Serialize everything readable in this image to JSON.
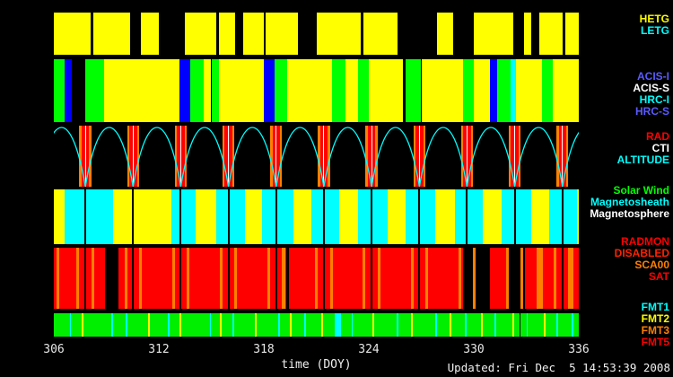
{
  "footer": {
    "updated": "Updated: Fri Dec  5 14:53:39 2008"
  },
  "labels": {
    "groups": [
      {
        "items": [
          {
            "text": "HETG",
            "color": "#ffff00"
          },
          {
            "text": "LETG",
            "color": "#00ffff"
          }
        ]
      },
      {
        "items": [
          {
            "text": "ACIS-I",
            "color": "#5a5aff"
          },
          {
            "text": "ACIS-S",
            "color": "#ffffff"
          },
          {
            "text": "HRC-I",
            "color": "#00ffff"
          },
          {
            "text": "HRC-S",
            "color": "#5a5aff"
          }
        ]
      },
      {
        "items": [
          {
            "text": "RAD",
            "color": "#ff0000"
          },
          {
            "text": "CTI",
            "color": "#ffffff"
          },
          {
            "text": "ALTITUDE",
            "color": "#00ffff"
          }
        ]
      },
      {
        "items": [
          {
            "text": "Solar Wind",
            "color": "#00ff00"
          },
          {
            "text": "Magnetosheath",
            "color": "#00ffff"
          },
          {
            "text": "Magnetosphere",
            "color": "#ffffff"
          }
        ]
      },
      {
        "items": [
          {
            "text": "RADMON",
            "color": "#ff0000"
          },
          {
            "text": "DISABLED",
            "color": "#ff2200"
          },
          {
            "text": "SCA00",
            "color": "#ff8000"
          },
          {
            "text": "SAT",
            "color": "#ff0000"
          }
        ]
      },
      {
        "items": [
          {
            "text": "FMT1",
            "color": "#00ffff"
          },
          {
            "text": "FMT2",
            "color": "#ffff00"
          },
          {
            "text": "FMT3",
            "color": "#ff8000"
          },
          {
            "text": "FMT5",
            "color": "#ff0000"
          }
        ]
      }
    ]
  },
  "chart_data": {
    "type": "timeline",
    "xlabel": "time (DOY)",
    "xlim": [
      306,
      336
    ],
    "xticks": [
      306,
      312,
      318,
      324,
      330,
      336
    ],
    "orbital_period_days": 2.727,
    "perigee_times": [
      307.8,
      310.53,
      313.25,
      315.98,
      318.71,
      321.43,
      324.16,
      326.89,
      329.61,
      332.34,
      335.07
    ],
    "bands": [
      {
        "id": "grating",
        "legend": {
          "HETG": "#ffff00",
          "LETG": "#00ffff"
        },
        "background": "#000000",
        "segments": [
          {
            "start": 306.0,
            "end": 308.1,
            "color": "#ffff00"
          },
          {
            "start": 308.25,
            "end": 310.35,
            "color": "#ffff00"
          },
          {
            "start": 310.95,
            "end": 312.0,
            "color": "#ffff00"
          },
          {
            "start": 313.5,
            "end": 315.3,
            "color": "#ffff00"
          },
          {
            "start": 315.45,
            "end": 316.35,
            "color": "#ffff00"
          },
          {
            "start": 316.8,
            "end": 318.0,
            "color": "#ffff00"
          },
          {
            "start": 318.12,
            "end": 319.95,
            "color": "#ffff00"
          },
          {
            "start": 321.0,
            "end": 323.55,
            "color": "#ffff00"
          },
          {
            "start": 323.7,
            "end": 325.65,
            "color": "#ffff00"
          },
          {
            "start": 327.9,
            "end": 328.8,
            "color": "#ffff00"
          },
          {
            "start": 330.0,
            "end": 332.25,
            "color": "#ffff00"
          },
          {
            "start": 332.85,
            "end": 333.3,
            "color": "#ffff00"
          },
          {
            "start": 333.75,
            "end": 335.1,
            "color": "#ffff00"
          },
          {
            "start": 335.25,
            "end": 336.0,
            "color": "#ffff00"
          }
        ]
      },
      {
        "id": "instruments",
        "legend": {
          "ACIS-I": "#0000ff",
          "ACIS-S": "#ffff00",
          "HRC-I": "#00ff00",
          "HRC-S": "#00ffff"
        },
        "background": "#000000",
        "segments": [
          {
            "start": 306.0,
            "end": 306.6,
            "color": "#00ff00"
          },
          {
            "start": 306.6,
            "end": 307.05,
            "color": "#0000ff"
          },
          {
            "start": 307.8,
            "end": 308.85,
            "color": "#00ff00"
          },
          {
            "start": 308.85,
            "end": 313.2,
            "color": "#ffff00"
          },
          {
            "start": 313.2,
            "end": 313.8,
            "color": "#0000ff"
          },
          {
            "start": 313.8,
            "end": 314.55,
            "color": "#00ff00"
          },
          {
            "start": 314.55,
            "end": 315.0,
            "color": "#ffff00"
          },
          {
            "start": 315.0,
            "end": 315.45,
            "color": "#00ff00"
          },
          {
            "start": 315.45,
            "end": 318.0,
            "color": "#ffff00"
          },
          {
            "start": 318.0,
            "end": 318.6,
            "color": "#0000ff"
          },
          {
            "start": 318.6,
            "end": 319.35,
            "color": "#00ff00"
          },
          {
            "start": 319.35,
            "end": 321.9,
            "color": "#ffff00"
          },
          {
            "start": 321.9,
            "end": 322.65,
            "color": "#00ff00"
          },
          {
            "start": 322.65,
            "end": 323.4,
            "color": "#ffff00"
          },
          {
            "start": 323.4,
            "end": 324.0,
            "color": "#00ff00"
          },
          {
            "start": 324.0,
            "end": 325.95,
            "color": "#ffff00"
          },
          {
            "start": 326.1,
            "end": 327.0,
            "color": "#00ff00"
          },
          {
            "start": 327.0,
            "end": 329.4,
            "color": "#ffff00"
          },
          {
            "start": 329.4,
            "end": 330.0,
            "color": "#00ff00"
          },
          {
            "start": 330.0,
            "end": 330.9,
            "color": "#ffff00"
          },
          {
            "start": 330.9,
            "end": 331.35,
            "color": "#0000ff"
          },
          {
            "start": 331.35,
            "end": 332.1,
            "color": "#00ff00"
          },
          {
            "start": 332.1,
            "end": 332.4,
            "color": "#00ffff"
          },
          {
            "start": 332.4,
            "end": 333.9,
            "color": "#ffff00"
          },
          {
            "start": 333.9,
            "end": 334.5,
            "color": "#00ff00"
          },
          {
            "start": 334.5,
            "end": 336.0,
            "color": "#ffff00"
          }
        ]
      },
      {
        "id": "altitude",
        "legend": {
          "RAD": "#ff0000",
          "CTI": "#ffffff",
          "ALTITUDE": "#00ffff"
        },
        "background": "#000000",
        "altitude_curve": "#00ffff",
        "perigee_stripes": [
          {
            "offset": -0.34,
            "width": 0.12,
            "color": "#ff8000"
          },
          {
            "offset": -0.22,
            "width": 0.19,
            "color": "#ff0000"
          },
          {
            "offset": -0.03,
            "width": 0.06,
            "color": "#ffffff"
          },
          {
            "offset": 0.03,
            "width": 0.19,
            "color": "#ff0000"
          },
          {
            "offset": 0.22,
            "width": 0.12,
            "color": "#ff8000"
          }
        ]
      },
      {
        "id": "regions",
        "legend": {
          "Solar Wind": "#ffff00",
          "Magnetosheath": "#00ffff",
          "Magnetosphere": "#000000"
        },
        "background": "#000000",
        "segments": [
          {
            "start": 306.0,
            "end": 306.6,
            "color": "#ffff00"
          },
          {
            "start": 306.6,
            "end": 309.4,
            "color": "#00ffff"
          },
          {
            "start": 309.4,
            "end": 312.7,
            "color": "#ffff00"
          },
          {
            "start": 312.7,
            "end": 314.1,
            "color": "#00ffff"
          },
          {
            "start": 314.1,
            "end": 315.3,
            "color": "#ffff00"
          },
          {
            "start": 315.3,
            "end": 316.9,
            "color": "#00ffff"
          },
          {
            "start": 316.9,
            "end": 317.9,
            "color": "#ffff00"
          },
          {
            "start": 317.9,
            "end": 319.7,
            "color": "#00ffff"
          },
          {
            "start": 319.7,
            "end": 320.7,
            "color": "#ffff00"
          },
          {
            "start": 320.7,
            "end": 322.3,
            "color": "#00ffff"
          },
          {
            "start": 322.3,
            "end": 323.4,
            "color": "#ffff00"
          },
          {
            "start": 323.4,
            "end": 325.1,
            "color": "#00ffff"
          },
          {
            "start": 325.1,
            "end": 326.1,
            "color": "#ffff00"
          },
          {
            "start": 326.1,
            "end": 327.8,
            "color": "#00ffff"
          },
          {
            "start": 327.8,
            "end": 328.9,
            "color": "#ffff00"
          },
          {
            "start": 328.9,
            "end": 330.5,
            "color": "#00ffff"
          },
          {
            "start": 330.5,
            "end": 331.6,
            "color": "#ffff00"
          },
          {
            "start": 331.6,
            "end": 333.3,
            "color": "#00ffff"
          },
          {
            "start": 333.3,
            "end": 334.3,
            "color": "#ffff00"
          },
          {
            "start": 334.3,
            "end": 335.9,
            "color": "#00ffff"
          },
          {
            "start": 335.9,
            "end": 336.0,
            "color": "#ffff00"
          }
        ],
        "perigee_stripes": [
          {
            "offset": -0.05,
            "width": 0.1,
            "color": "#000000"
          }
        ]
      },
      {
        "id": "radmon",
        "legend": {
          "RADMON": "#ff0000",
          "DISABLED": "#000000",
          "SCA00": "#ff8000",
          "SAT": "#ff0000"
        },
        "background": "#000000",
        "segments": [
          {
            "start": 306.0,
            "end": 308.9,
            "color": "#ff0000"
          },
          {
            "start": 309.7,
            "end": 319.3,
            "color": "#ff0000"
          },
          {
            "start": 319.45,
            "end": 329.4,
            "color": "#ff0000"
          },
          {
            "start": 330.9,
            "end": 331.9,
            "color": "#ff0000"
          },
          {
            "start": 332.9,
            "end": 336.0,
            "color": "#ff0000"
          }
        ],
        "stripes": [
          {
            "x": 306.15,
            "width": 0.18,
            "color": "#ff8000"
          },
          {
            "x": 333.6,
            "width": 0.35,
            "color": "#ff8000"
          },
          {
            "x": 335.5,
            "width": 0.2,
            "color": "#ff8000"
          }
        ],
        "perigee_stripes": [
          {
            "offset": -0.5,
            "width": 0.16,
            "color": "#ff8000"
          },
          {
            "offset": -0.05,
            "width": 0.1,
            "color": "#000000"
          },
          {
            "offset": 0.34,
            "width": 0.16,
            "color": "#ff8000"
          }
        ]
      },
      {
        "id": "fmt",
        "legend": {
          "FMT1": "#00ffff",
          "FMT2": "#00ff00",
          "FMT3": "#ff8000",
          "FMT5": "#ff0000"
        },
        "background": "#00ee00",
        "stripes": [
          {
            "x": 306.9,
            "width": 0.1,
            "color": "#00ffff"
          },
          {
            "x": 309.3,
            "width": 0.1,
            "color": "#00ffff"
          },
          {
            "x": 310.1,
            "width": 0.1,
            "color": "#00ffff"
          },
          {
            "x": 312.5,
            "width": 0.1,
            "color": "#00ffff"
          },
          {
            "x": 314.9,
            "width": 0.1,
            "color": "#00ffff"
          },
          {
            "x": 316.2,
            "width": 0.1,
            "color": "#00ffff"
          },
          {
            "x": 318.8,
            "width": 0.1,
            "color": "#00ffff"
          },
          {
            "x": 320.3,
            "width": 0.1,
            "color": "#00ffff"
          },
          {
            "x": 322.05,
            "width": 0.35,
            "color": "#00ffff"
          },
          {
            "x": 323.0,
            "width": 0.1,
            "color": "#00ffff"
          },
          {
            "x": 325.6,
            "width": 0.1,
            "color": "#00ffff"
          },
          {
            "x": 327.8,
            "width": 0.1,
            "color": "#00ffff"
          },
          {
            "x": 329.5,
            "width": 0.1,
            "color": "#00ffff"
          },
          {
            "x": 331.2,
            "width": 0.1,
            "color": "#00ffff"
          },
          {
            "x": 333.0,
            "width": 0.1,
            "color": "#00ffff"
          },
          {
            "x": 334.7,
            "width": 0.1,
            "color": "#00ffff"
          },
          {
            "x": 335.6,
            "width": 0.1,
            "color": "#00ffff"
          },
          {
            "x": 307.6,
            "width": 0.1,
            "color": "#ffff00"
          },
          {
            "x": 311.4,
            "width": 0.1,
            "color": "#ffff00"
          },
          {
            "x": 313.2,
            "width": 0.1,
            "color": "#ffff00"
          },
          {
            "x": 315.5,
            "width": 0.1,
            "color": "#ffff00"
          },
          {
            "x": 317.5,
            "width": 0.1,
            "color": "#ffff00"
          },
          {
            "x": 319.5,
            "width": 0.1,
            "color": "#ffff00"
          },
          {
            "x": 321.3,
            "width": 0.1,
            "color": "#ffff00"
          },
          {
            "x": 324.2,
            "width": 0.1,
            "color": "#ffff00"
          },
          {
            "x": 326.4,
            "width": 0.1,
            "color": "#ffff00"
          },
          {
            "x": 328.6,
            "width": 0.1,
            "color": "#ffff00"
          },
          {
            "x": 330.4,
            "width": 0.1,
            "color": "#ffff00"
          },
          {
            "x": 332.2,
            "width": 0.1,
            "color": "#ffff00"
          },
          {
            "x": 334.0,
            "width": 0.1,
            "color": "#ffff00"
          },
          {
            "x": 332.6,
            "width": 0.08,
            "color": "#000000"
          }
        ]
      }
    ]
  }
}
